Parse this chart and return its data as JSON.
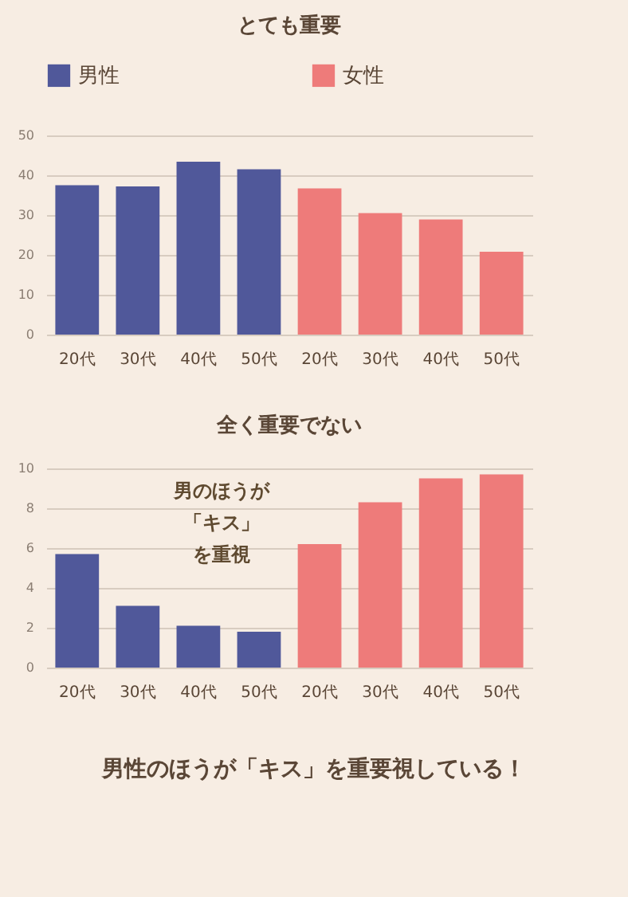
{
  "chart_data": [
    {
      "type": "bar",
      "title": "とても重要",
      "categories": [
        "20代",
        "30代",
        "40代",
        "50代",
        "20代",
        "30代",
        "40代",
        "50代"
      ],
      "series": [
        {
          "name": "男性",
          "color": "#50589a",
          "values": [
            37.5,
            37.2,
            43.4,
            41.5,
            null,
            null,
            null,
            null
          ]
        },
        {
          "name": "女性",
          "color": "#ee7b7a",
          "values": [
            null,
            null,
            null,
            null,
            36.7,
            30.5,
            28.9,
            20.8
          ]
        }
      ],
      "ylim": [
        0,
        50
      ],
      "yticks": [
        0,
        10,
        20,
        30,
        40,
        50
      ],
      "grid": "y",
      "legend": "top"
    },
    {
      "type": "bar",
      "title": "全く重要でない",
      "categories": [
        "20代",
        "30代",
        "40代",
        "50代",
        "20代",
        "30代",
        "40代",
        "50代"
      ],
      "series": [
        {
          "color": "#50589a",
          "values": [
            5.7,
            3.1,
            2.1,
            1.8,
            null,
            null,
            null,
            null
          ]
        },
        {
          "color": "#ee7b7a",
          "values": [
            null,
            null,
            null,
            null,
            6.2,
            8.3,
            9.5,
            9.7
          ]
        }
      ],
      "ylim": [
        0,
        10
      ],
      "yticks": [
        0,
        2,
        4,
        6,
        8,
        10
      ],
      "grid": "y",
      "legend": false,
      "annotations": [
        "男のほうが",
        "「キス」",
        "を重視",
        "男性のほうが「キス」を重要視している！"
      ]
    }
  ]
}
